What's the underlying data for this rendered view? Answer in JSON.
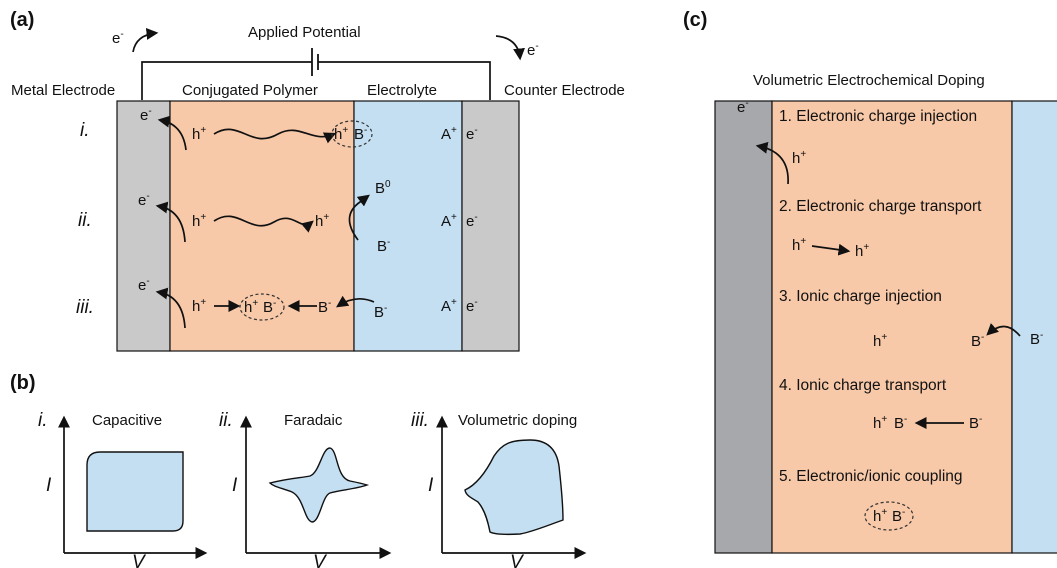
{
  "panels": {
    "a": "(a)",
    "b": "(b)",
    "c": "(c)"
  },
  "a": {
    "applied_potential": "Applied Potential",
    "e_minus": "e-",
    "metal_electrode": "Metal Electrode",
    "conjugated_polymer": "Conjugated Polymer",
    "electrolyte": "Electrolyte",
    "counter_electrode": "Counter Electrode",
    "rows": [
      "i.",
      "ii.",
      "iii."
    ],
    "species": {
      "hole": "h+",
      "anion": "B-",
      "cation": "A+",
      "neutral": "B0",
      "electron": "e-"
    }
  },
  "b": {
    "plots": [
      {
        "num": "i.",
        "title": "Capacitive",
        "ylabel": "I",
        "xlabel": "V"
      },
      {
        "num": "ii.",
        "title": "Faradaic",
        "ylabel": "I",
        "xlabel": "V"
      },
      {
        "num": "iii.",
        "title": "Volumetric doping",
        "ylabel": "I",
        "xlabel": "V"
      }
    ]
  },
  "c": {
    "title": "Volumetric Electrochemical Doping",
    "steps": [
      "1. Electronic charge injection",
      "2. Electronic charge transport",
      "3. Ionic charge injection",
      "4. Ionic charge transport",
      "5. Electronic/ionic coupling"
    ]
  },
  "colors": {
    "electrode": "#c9c9ca",
    "electrode_dark": "#a7a8ab",
    "polymer": "#f8c9a9",
    "electrolyte": "#c5dff2"
  }
}
